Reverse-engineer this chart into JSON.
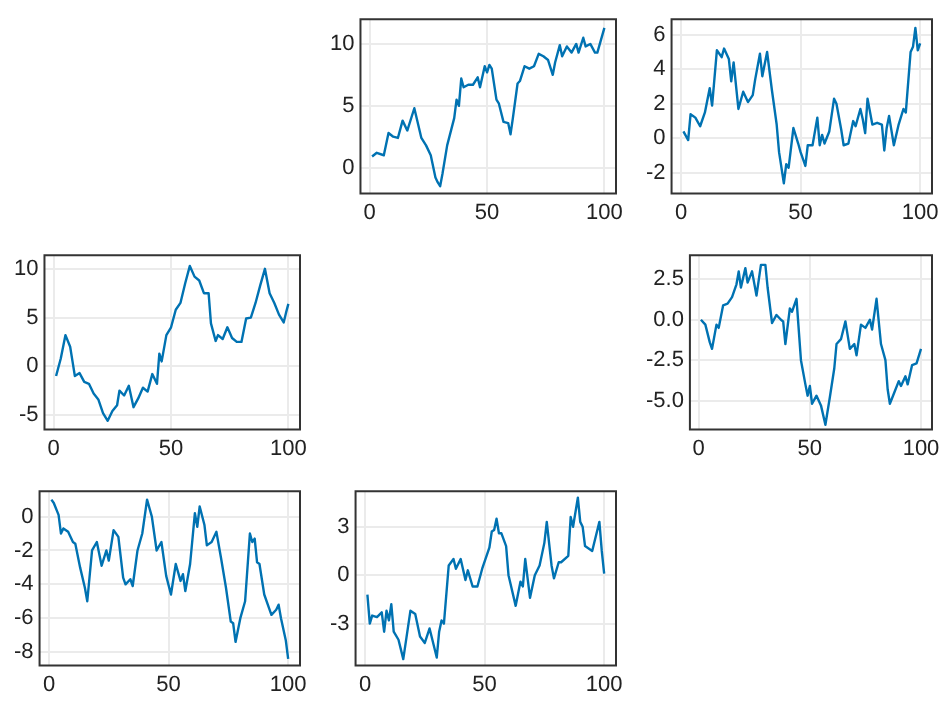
{
  "chart_data": [
    {
      "type": "line",
      "color": "#0072b2",
      "grid": true,
      "xlim": [
        -3.95,
        104.95
      ],
      "ylim": [
        -2.1,
        12
      ],
      "xticks": [
        0,
        50,
        100
      ],
      "yticks": [
        0,
        5,
        10
      ],
      "x": [
        1,
        3,
        6,
        8,
        10,
        12,
        14,
        16,
        19,
        22,
        24,
        26,
        28,
        29,
        30,
        31,
        33,
        36,
        37,
        38,
        39,
        40,
        42,
        44,
        46,
        47,
        49,
        50,
        51,
        52,
        54,
        55,
        57,
        59,
        60,
        61,
        63,
        64,
        66,
        68,
        70,
        72,
        74,
        76,
        78,
        79,
        81,
        82,
        84,
        86,
        88,
        89,
        91,
        92,
        94,
        96,
        97,
        100
      ],
      "values": [
        0.9,
        1.2,
        1.0,
        2.8,
        2.5,
        2.4,
        3.8,
        3.0,
        4.8,
        2.4,
        1.8,
        1.0,
        -0.8,
        -1.2,
        -1.5,
        -0.5,
        1.8,
        4.0,
        5.5,
        5.0,
        7.2,
        6.5,
        6.7,
        6.7,
        7.3,
        6.5,
        8.2,
        7.7,
        8.3,
        8.0,
        5.5,
        5.2,
        3.7,
        3.6,
        2.7,
        4.0,
        6.8,
        7.0,
        8.2,
        8.0,
        8.2,
        9.2,
        9.0,
        8.7,
        7.5,
        8.5,
        9.9,
        9.0,
        9.8,
        9.3,
        10.0,
        9.3,
        10.5,
        9.8,
        10.0,
        9.3,
        9.3,
        11.3
      ]
    },
    {
      "type": "line",
      "color": "#0072b2",
      "grid": true,
      "xlim": [
        -3.95,
        104.95
      ],
      "ylim": [
        -3.2,
        6.9
      ],
      "xticks": [
        0,
        50,
        100
      ],
      "yticks": [
        -2,
        0,
        2,
        4,
        6
      ],
      "x": [
        1,
        3,
        4,
        6,
        8,
        10,
        12,
        13,
        15,
        17,
        18,
        20,
        21,
        22,
        24,
        26,
        28,
        30,
        31,
        33,
        34,
        36,
        38,
        40,
        41,
        43,
        44,
        45,
        47,
        49,
        50,
        52,
        53,
        55,
        57,
        58,
        59,
        60,
        62,
        64,
        65,
        67,
        68,
        70,
        72,
        73,
        75,
        76,
        77,
        78,
        80,
        82,
        84,
        85,
        86,
        87,
        89,
        91,
        93,
        94,
        96,
        97,
        98,
        99,
        100
      ],
      "values": [
        0.4,
        -0.1,
        1.4,
        1.2,
        0.7,
        1.5,
        2.9,
        1.9,
        5.1,
        4.7,
        5.2,
        4.6,
        3.3,
        4.4,
        1.7,
        2.7,
        2.1,
        2.5,
        3.4,
        4.9,
        3.6,
        5.0,
        2.8,
        0.8,
        -0.8,
        -2.6,
        -1.5,
        -1.7,
        0.6,
        -0.3,
        -0.8,
        -1.6,
        -0.4,
        -0.4,
        1.2,
        -0.4,
        0.2,
        -0.3,
        0.4,
        2.3,
        2.0,
        0.5,
        -0.4,
        -0.3,
        1.0,
        0.7,
        1.7,
        1.1,
        0.3,
        2.3,
        0.8,
        0.9,
        0.8,
        -0.7,
        0.6,
        1.3,
        -0.4,
        0.8,
        1.7,
        1.5,
        5.0,
        5.3,
        6.4,
        5.1,
        5.5
      ]
    },
    {
      "type": "line",
      "color": "#0072b2",
      "grid": true,
      "xlim": [
        -3.95,
        104.95
      ],
      "ylim": [
        -6.5,
        11.4
      ],
      "xticks": [
        0,
        50,
        100
      ],
      "yticks": [
        -5,
        0,
        5,
        10
      ],
      "x": [
        1,
        3,
        5,
        7,
        8,
        9,
        11,
        13,
        15,
        17,
        19,
        21,
        23,
        25,
        27,
        28,
        30,
        32,
        34,
        36,
        38,
        40,
        42,
        44,
        45,
        46,
        48,
        50,
        52,
        54,
        56,
        58,
        60,
        62,
        64,
        66,
        67,
        69,
        70,
        72,
        74,
        76,
        78,
        80,
        82,
        84,
        86,
        88,
        90,
        92,
        94,
        96,
        98,
        99,
        100
      ],
      "values": [
        -1.0,
        0.8,
        3.2,
        2.0,
        0.5,
        -1.0,
        -0.7,
        -1.6,
        -1.8,
        -2.8,
        -3.4,
        -4.8,
        -5.6,
        -4.6,
        -4.0,
        -2.5,
        -3.0,
        -2.0,
        -4.2,
        -3.3,
        -2.2,
        -2.6,
        -0.8,
        -1.8,
        1.3,
        0.5,
        3.2,
        4.0,
        5.8,
        6.5,
        8.5,
        10.3,
        9.2,
        8.8,
        7.5,
        7.5,
        4.4,
        2.6,
        3.2,
        2.8,
        4.0,
        2.9,
        2.5,
        2.5,
        4.9,
        5.0,
        6.5,
        8.3,
        10.0,
        7.5,
        6.5,
        5.3,
        4.5,
        5.5,
        6.4
      ]
    },
    {
      "type": "line",
      "color": "#0072b2",
      "grid": true,
      "xlim": [
        -3.95,
        104.95
      ],
      "ylim": [
        -6.8,
        4.0
      ],
      "xticks": [
        0,
        50,
        100
      ],
      "yticks": [
        {
          "value": -5,
          "label": "-5.0"
        },
        -2.5,
        {
          "value": 0,
          "label": "0.0"
        },
        2.5
      ],
      "x": [
        1,
        3,
        5,
        6,
        8,
        9,
        11,
        13,
        15,
        17,
        18,
        19,
        21,
        22,
        24,
        26,
        28,
        30,
        31,
        33,
        35,
        37,
        38,
        39,
        41,
        42,
        44,
        46,
        48,
        49,
        50,
        51,
        53,
        55,
        57,
        59,
        61,
        62,
        64,
        66,
        68,
        70,
        71,
        73,
        75,
        77,
        78,
        80,
        82,
        84,
        85,
        86,
        88,
        90,
        91,
        93,
        94,
        96,
        98,
        100
      ],
      "values": [
        0.0,
        -0.3,
        -1.4,
        -1.8,
        -0.3,
        -0.5,
        0.9,
        1.0,
        1.4,
        2.2,
        3.0,
        2.0,
        3.2,
        2.3,
        3.0,
        1.5,
        3.4,
        3.4,
        2.0,
        -0.2,
        0.3,
        0.0,
        -0.1,
        -1.5,
        0.7,
        0.5,
        1.3,
        -2.5,
        -4.0,
        -4.7,
        -4.1,
        -5.2,
        -4.7,
        -5.3,
        -6.5,
        -4.8,
        -3.0,
        -1.5,
        -1.2,
        -0.1,
        -1.8,
        -1.5,
        -2.2,
        -0.3,
        -0.5,
        0.0,
        -0.6,
        1.3,
        -1.5,
        -2.5,
        -4.3,
        -5.2,
        -4.5,
        -3.8,
        -4.1,
        -3.5,
        -4.0,
        -2.8,
        -2.7,
        -1.8
      ]
    },
    {
      "type": "line",
      "color": "#0072b2",
      "grid": true,
      "xlim": [
        -3.95,
        104.95
      ],
      "ylim": [
        -8.8,
        1.5
      ],
      "xticks": [
        0,
        50,
        100
      ],
      "yticks": [
        -8,
        -6,
        -4,
        -2,
        0
      ],
      "x": [
        1,
        2,
        4,
        5,
        6,
        8,
        10,
        11,
        13,
        15,
        16,
        18,
        20,
        22,
        24,
        25,
        27,
        29,
        31,
        32,
        34,
        35,
        37,
        39,
        41,
        43,
        45,
        47,
        49,
        51,
        53,
        55,
        56,
        57,
        59,
        61,
        62,
        63,
        65,
        66,
        68,
        70,
        72,
        74,
        76,
        77,
        78,
        80,
        82,
        84,
        85,
        86,
        87,
        88,
        90,
        92,
        93,
        95,
        96,
        97,
        99,
        100
      ],
      "values": [
        1.0,
        0.8,
        0.1,
        -1.0,
        -0.7,
        -0.9,
        -1.5,
        -1.6,
        -3.0,
        -4.2,
        -5.0,
        -2.0,
        -1.5,
        -2.9,
        -2.0,
        -2.6,
        -0.8,
        -1.2,
        -3.6,
        -4.0,
        -3.7,
        -4.1,
        -2.0,
        -1.0,
        1.0,
        0.0,
        -2.0,
        -1.5,
        -3.5,
        -4.6,
        -2.8,
        -3.8,
        -3.4,
        -4.4,
        -2.8,
        0.2,
        -0.6,
        0.6,
        -0.5,
        -1.7,
        -1.5,
        -0.9,
        -2.5,
        -4.2,
        -6.2,
        -6.3,
        -7.4,
        -6.0,
        -5.0,
        -1.0,
        -1.5,
        -1.3,
        -2.7,
        -2.8,
        -4.6,
        -5.4,
        -5.8,
        -5.5,
        -5.2,
        -6.0,
        -7.3,
        -8.4
      ]
    },
    {
      "type": "line",
      "color": "#0072b2",
      "grid": true,
      "xlim": [
        -3.95,
        104.95
      ],
      "ylim": [
        -5.6,
        5.2
      ],
      "xticks": [
        0,
        50,
        100
      ],
      "yticks": [
        -3,
        0,
        3
      ],
      "x": [
        1,
        2,
        3,
        5,
        7,
        8,
        9,
        10,
        11,
        12,
        14,
        16,
        19,
        21,
        23,
        25,
        27,
        30,
        31,
        32,
        33,
        35,
        37,
        38,
        40,
        42,
        43,
        45,
        47,
        49,
        52,
        53,
        54,
        55,
        56,
        57,
        59,
        60,
        63,
        65,
        66,
        67,
        69,
        71,
        73,
        75,
        76,
        78,
        79,
        81,
        82,
        85,
        86,
        87,
        89,
        90,
        91,
        92,
        95,
        97,
        98,
        99,
        100
      ],
      "values": [
        -1.2,
        -3.0,
        -2.5,
        -2.6,
        -2.3,
        -3.5,
        -2.2,
        -2.8,
        -1.8,
        -3.5,
        -4.0,
        -5.2,
        -2.2,
        -2.4,
        -3.8,
        -4.2,
        -3.3,
        -5.1,
        -3.5,
        -2.8,
        -3.0,
        0.6,
        1.0,
        0.4,
        1.0,
        -0.3,
        0.3,
        -0.7,
        -0.7,
        0.4,
        1.7,
        2.7,
        2.8,
        3.5,
        2.6,
        2.6,
        1.8,
        0.0,
        -1.9,
        -0.4,
        -0.7,
        1.0,
        -1.4,
        0.0,
        0.6,
        2.0,
        3.3,
        0.6,
        -0.2,
        0.8,
        0.8,
        1.2,
        3.6,
        3.0,
        4.8,
        3.3,
        3.0,
        1.8,
        1.5,
        2.7,
        3.3,
        1.5,
        0.1
      ]
    }
  ]
}
